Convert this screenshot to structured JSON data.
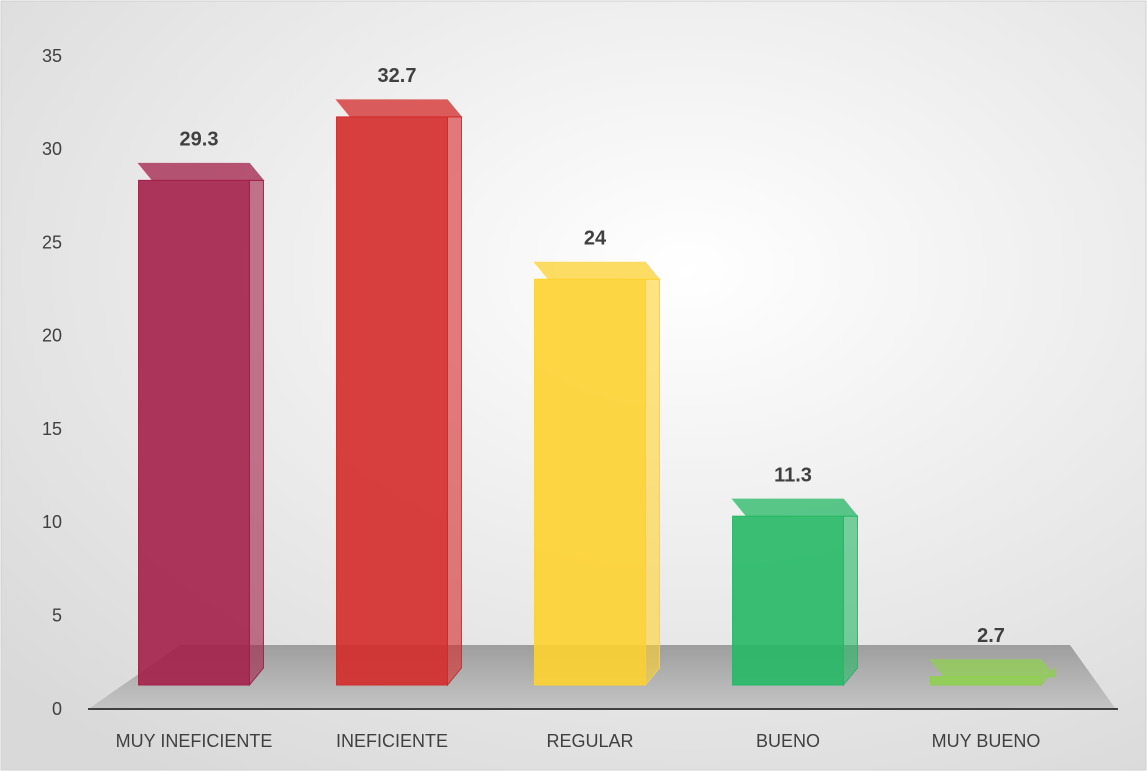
{
  "chart_data": {
    "type": "bar3d",
    "categories": [
      "MUY INEFICIENTE",
      "INEFICIENTE",
      "REGULAR",
      "BUENO",
      "MUY BUENO"
    ],
    "values": [
      29.3,
      32.7,
      24,
      11.3,
      2.7
    ],
    "colors": [
      "#a3204a",
      "#d42a2a",
      "#fdd230",
      "#25b865",
      "#8fcf50"
    ],
    "ylim": [
      0,
      35
    ],
    "yticks": [
      0,
      5,
      10,
      15,
      20,
      25,
      30,
      35
    ],
    "grid": false,
    "data_labels": true
  }
}
